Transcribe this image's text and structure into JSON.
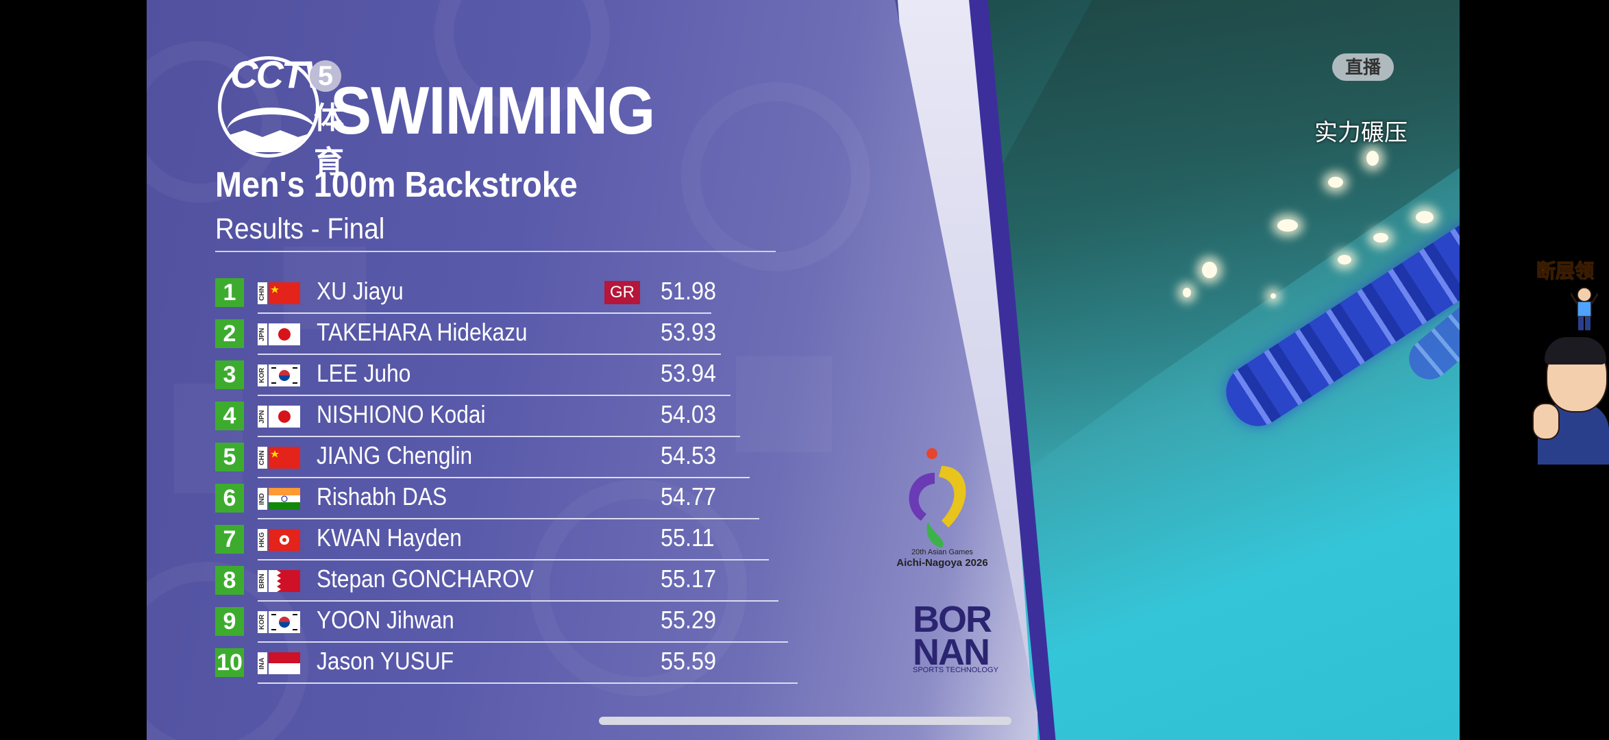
{
  "overlay": {
    "live_badge": "直播",
    "caption": "实力碾压"
  },
  "broadcaster": {
    "logo_text": "CCTV",
    "channel_number": "5",
    "channel_char": "体育"
  },
  "graphic": {
    "sport": "SWIMMING",
    "event": "Men's 100m Backstroke",
    "subtitle": "Results - Final"
  },
  "results": [
    {
      "rank": "1",
      "noc": "CHN",
      "name": "XU Jiayu",
      "record": "GR",
      "time": "51.98"
    },
    {
      "rank": "2",
      "noc": "JPN",
      "name": "TAKEHARA Hidekazu",
      "record": "",
      "time": "53.93"
    },
    {
      "rank": "3",
      "noc": "KOR",
      "name": "LEE Juho",
      "record": "",
      "time": "53.94"
    },
    {
      "rank": "4",
      "noc": "JPN",
      "name": "NISHIONO Kodai",
      "record": "",
      "time": "54.03"
    },
    {
      "rank": "5",
      "noc": "CHN",
      "name": "JIANG Chenglin",
      "record": "",
      "time": "54.53"
    },
    {
      "rank": "6",
      "noc": "IND",
      "name": "Rishabh DAS",
      "record": "",
      "time": "54.77"
    },
    {
      "rank": "7",
      "noc": "HKG",
      "name": "KWAN Hayden",
      "record": "",
      "time": "55.11"
    },
    {
      "rank": "8",
      "noc": "BRN",
      "name": "Stepan GONCHAROV",
      "record": "",
      "time": "55.17"
    },
    {
      "rank": "9",
      "noc": "KOR",
      "name": "YOON Jihwan",
      "record": "",
      "time": "55.29"
    },
    {
      "rank": "10",
      "noc": "INA",
      "name": "Jason YUSUF",
      "record": "",
      "time": "55.59"
    }
  ],
  "sponsors": {
    "games_line1": "20th Asian Games",
    "games_line2": "Aichi-Nagoya 2026",
    "tech_line1": "BOR",
    "tech_line2": "NAN",
    "tech_tagline": "SPORTS TECHNOLOGY"
  },
  "widget": {
    "label": "断层领"
  },
  "colors": {
    "rank_badge": "#3dac2e",
    "record_badge": "#b5163a",
    "panel": "#5a5aab"
  }
}
